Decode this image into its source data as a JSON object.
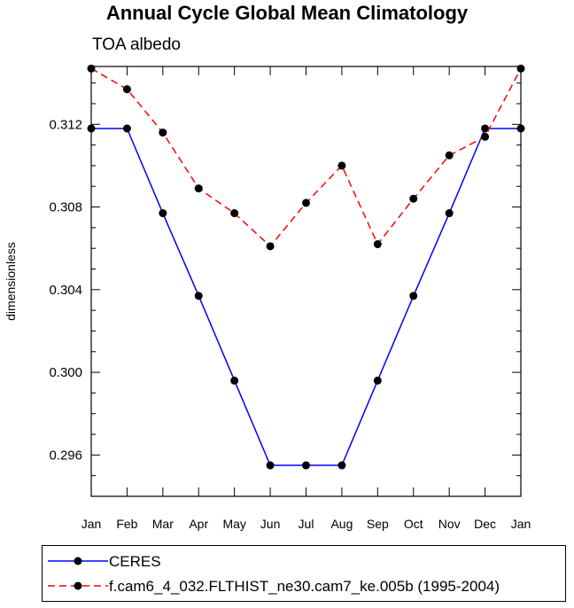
{
  "chart_data": {
    "type": "line",
    "title": "Annual Cycle Global Mean Climatology",
    "subtitle": "TOA albedo",
    "xlabel": "",
    "ylabel": "dimensionless",
    "categories": [
      "Jan",
      "Feb",
      "Mar",
      "Apr",
      "May",
      "Jun",
      "Jul",
      "Aug",
      "Sep",
      "Oct",
      "Nov",
      "Dec",
      "Jan"
    ],
    "ylim": [
      0.294,
      0.3148
    ],
    "yticks": [
      0.296,
      0.3,
      0.304,
      0.308,
      0.312
    ],
    "ytick_labels": [
      "0.296",
      "0.300",
      "0.304",
      "0.308",
      "0.312"
    ],
    "grid": false,
    "legend_position": "bottom",
    "series": [
      {
        "name": "CERES",
        "color": "#0000ff",
        "dash": "solid",
        "marker": "circle",
        "values": [
          0.3118,
          0.3118,
          0.3077,
          0.3037,
          0.2996,
          0.2955,
          0.2955,
          0.2955,
          0.2996,
          0.3037,
          0.3077,
          0.3118,
          0.3118
        ]
      },
      {
        "name": "f.cam6_4_032.FLTHIST_ne30.cam7_ke.005b (1995-2004)",
        "color": "#ff0000",
        "dash": "dashed",
        "marker": "circle",
        "values": [
          0.3147,
          0.3137,
          0.3116,
          0.3089,
          0.3077,
          0.3061,
          0.3082,
          0.31,
          0.3062,
          0.3084,
          0.3105,
          0.3114,
          0.3147
        ]
      }
    ]
  }
}
